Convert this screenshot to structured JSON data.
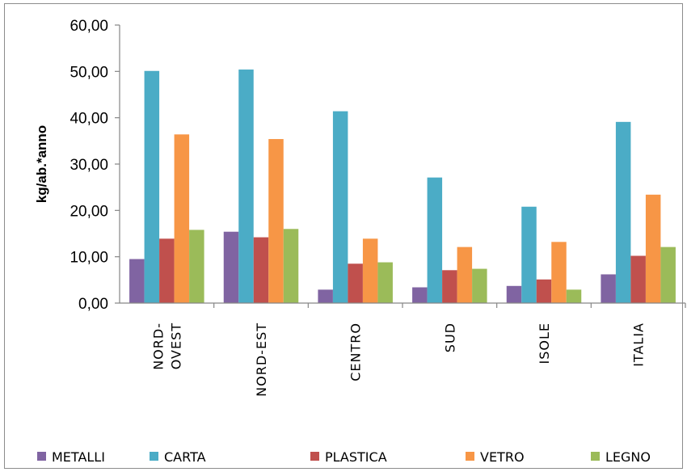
{
  "chart_data": {
    "type": "bar",
    "title": "",
    "xlabel": "",
    "ylabel": "kg/ab.*anno",
    "ylim": [
      0,
      60
    ],
    "yticks": [
      "0,00",
      "10,00",
      "20,00",
      "30,00",
      "40,00",
      "50,00",
      "60,00"
    ],
    "grid": false,
    "legend_position": "bottom",
    "categories": [
      {
        "lines": [
          "NORD-",
          "OVEST"
        ]
      },
      {
        "lines": [
          "NORD-EST"
        ]
      },
      {
        "lines": [
          "CENTRO"
        ]
      },
      {
        "lines": [
          "SUD"
        ]
      },
      {
        "lines": [
          "ISOLE"
        ]
      },
      {
        "lines": [
          "ITALIA"
        ]
      }
    ],
    "series": [
      {
        "name": "METALLI",
        "color": "#8064A2",
        "values": [
          9.5,
          15.4,
          2.9,
          3.4,
          3.7,
          6.2
        ]
      },
      {
        "name": "CARTA",
        "color": "#4BACC6",
        "values": [
          50.1,
          50.4,
          41.4,
          27.1,
          20.8,
          39.1
        ]
      },
      {
        "name": "PLASTICA",
        "color": "#C0504D",
        "values": [
          13.9,
          14.2,
          8.5,
          7.1,
          5.1,
          10.2
        ]
      },
      {
        "name": "VETRO",
        "color": "#F79646",
        "values": [
          36.4,
          35.4,
          13.9,
          12.1,
          13.2,
          23.4
        ]
      },
      {
        "name": "LEGNO",
        "color": "#9BBB59",
        "values": [
          15.8,
          16.0,
          8.8,
          7.4,
          2.9,
          12.1
        ]
      }
    ]
  }
}
